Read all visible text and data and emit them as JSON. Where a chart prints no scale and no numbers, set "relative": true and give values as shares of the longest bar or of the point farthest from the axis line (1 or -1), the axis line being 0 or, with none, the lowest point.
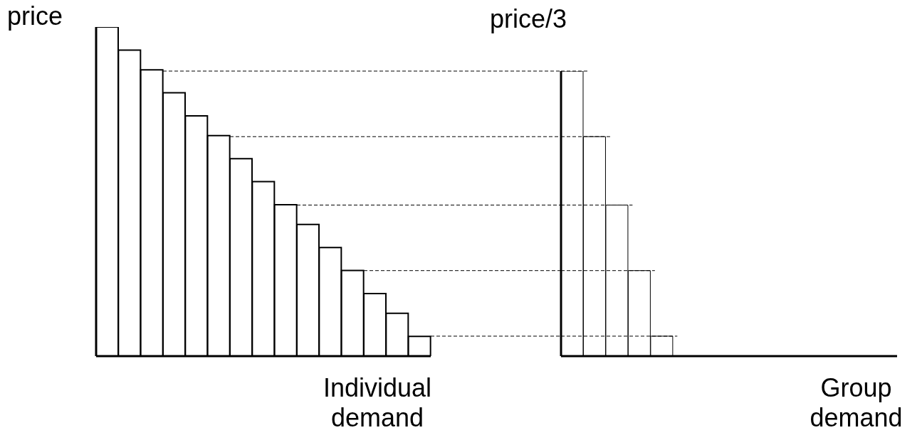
{
  "chart_data": [
    {
      "type": "bar",
      "relative": true,
      "ylabel": "price",
      "xlabel": "Individual demand",
      "tick_labels": false,
      "grid": false,
      "legend": false,
      "color": "#ffffff",
      "categories": [
        null,
        null,
        null,
        null,
        null,
        null,
        null,
        null,
        null,
        null,
        null,
        null,
        null,
        null,
        null
      ],
      "values": [
        1,
        0.93,
        0.87,
        0.8,
        0.73,
        0.67,
        0.6,
        0.53,
        0.46,
        0.4,
        0.33,
        0.26,
        0.19,
        0.13,
        0.06
      ]
    },
    {
      "type": "bar",
      "relative": true,
      "ylabel": "price/3",
      "xlabel": "Group demand",
      "tick_labels": false,
      "grid": false,
      "legend": false,
      "color": "#ffffff",
      "categories": [
        null,
        null,
        null,
        null,
        null
      ],
      "values": [
        1,
        0.77,
        0.53,
        0.3,
        0.07
      ],
      "ref_lines": [
        {
          "axis": "y",
          "value": 1,
          "line_style": "dashed"
        },
        {
          "axis": "y",
          "value": 0.77,
          "line_style": "dashed"
        },
        {
          "axis": "y",
          "value": 0.53,
          "line_style": "dashed"
        },
        {
          "axis": "y",
          "value": 0.3,
          "line_style": "dashed"
        },
        {
          "axis": "y",
          "value": 0.07,
          "line_style": "dashed"
        }
      ]
    }
  ]
}
